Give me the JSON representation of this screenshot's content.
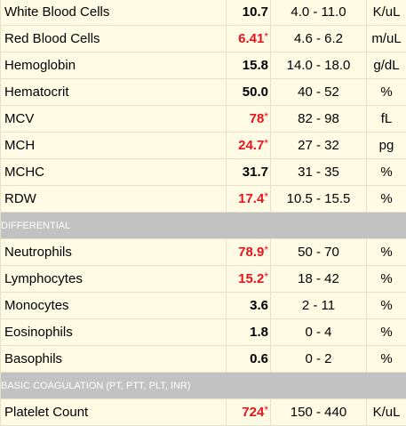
{
  "groups": [
    {
      "rows": [
        {
          "name": "White Blood Cells",
          "value": "10.7",
          "flag": "",
          "range": "4.0 - 11.0",
          "unit": "K/uL",
          "abnormal": false
        },
        {
          "name": "Red Blood Cells",
          "value": "6.41",
          "flag": "*",
          "range": "4.6 - 6.2",
          "unit": "m/uL",
          "abnormal": true
        },
        {
          "name": "Hemoglobin",
          "value": "15.8",
          "flag": "",
          "range": "14.0 - 18.0",
          "unit": "g/dL",
          "abnormal": false
        },
        {
          "name": "Hematocrit",
          "value": "50.0",
          "flag": "",
          "range": "40 - 52",
          "unit": "%",
          "abnormal": false
        },
        {
          "name": "MCV",
          "value": "78",
          "flag": "*",
          "range": "82 - 98",
          "unit": "fL",
          "abnormal": true
        },
        {
          "name": "MCH",
          "value": "24.7",
          "flag": "*",
          "range": "27 - 32",
          "unit": "pg",
          "abnormal": true
        },
        {
          "name": "MCHC",
          "value": "31.7",
          "flag": "",
          "range": "31 - 35",
          "unit": "%",
          "abnormal": false
        },
        {
          "name": "RDW",
          "value": "17.4",
          "flag": "*",
          "range": "10.5 - 15.5",
          "unit": "%",
          "abnormal": true
        }
      ]
    },
    {
      "header": "DIFFERENTIAL",
      "rows": [
        {
          "name": "Neutrophils",
          "value": "78.9",
          "flag": "*",
          "range": "50 - 70",
          "unit": "%",
          "abnormal": true
        },
        {
          "name": "Lymphocytes",
          "value": "15.2",
          "flag": "*",
          "range": "18 - 42",
          "unit": "%",
          "abnormal": true
        },
        {
          "name": "Monocytes",
          "value": "3.6",
          "flag": "",
          "range": "2 - 11",
          "unit": "%",
          "abnormal": false
        },
        {
          "name": "Eosinophils",
          "value": "1.8",
          "flag": "",
          "range": "0 - 4",
          "unit": "%",
          "abnormal": false
        },
        {
          "name": "Basophils",
          "value": "0.6",
          "flag": "",
          "range": "0 - 2",
          "unit": "%",
          "abnormal": false
        }
      ]
    },
    {
      "header": "BASIC COAGULATION (PT, PTT, PLT, INR)",
      "rows": [
        {
          "name": "Platelet Count",
          "value": "724",
          "flag": "*",
          "range": "150 - 440",
          "unit": "K/uL",
          "abnormal": true
        }
      ]
    }
  ],
  "colors": {
    "abnormal": "#e8131c",
    "section_bg": "#c2c2c2",
    "page_bg": "#fffbe5"
  }
}
